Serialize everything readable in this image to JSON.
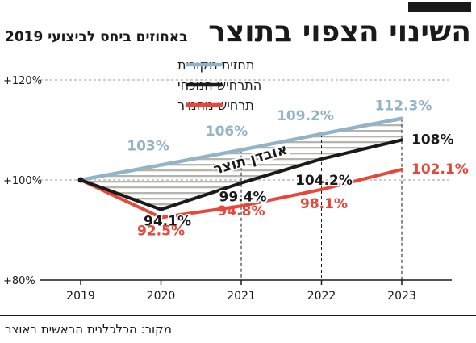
{
  "header": {
    "title": "השינוי הצפוי בתוצר",
    "subtitle": "באחוזים ביחס לביצועי 2019"
  },
  "source": "מקור: הכלכלנית הראשית באוצר",
  "colors": {
    "original": "#93b3c7",
    "current": "#1a1a1a",
    "severe": "#e84638",
    "hatch": "#b5b5ad"
  },
  "chart_data": {
    "type": "line",
    "x": [
      "2019",
      "2020",
      "2021",
      "2022",
      "2023"
    ],
    "y_ticks": [
      "+80%",
      "+100%",
      "+120%"
    ],
    "ylim": [
      80,
      120
    ],
    "series": [
      {
        "name": "תחזית מקורית",
        "key": "original",
        "values": [
          100,
          103,
          106,
          109.2,
          112.3
        ],
        "labels": [
          "",
          "103%",
          "106%",
          "109.2%",
          "112.3%"
        ]
      },
      {
        "name": "התרחיש הנוכחי",
        "key": "current",
        "values": [
          100,
          94.1,
          99.4,
          104.2,
          108
        ],
        "labels": [
          "",
          "94.1%",
          "99.4%",
          "104.2%",
          "108%"
        ]
      },
      {
        "name": "תרחיש מחמיר",
        "key": "severe",
        "values": [
          100,
          92.5,
          94.8,
          98.1,
          102.1
        ],
        "labels": [
          "",
          "92.5%",
          "94.8%",
          "98.1%",
          "102.1%"
        ]
      }
    ],
    "annotation": "אובדן תוצר",
    "legend_position": "top-left"
  }
}
